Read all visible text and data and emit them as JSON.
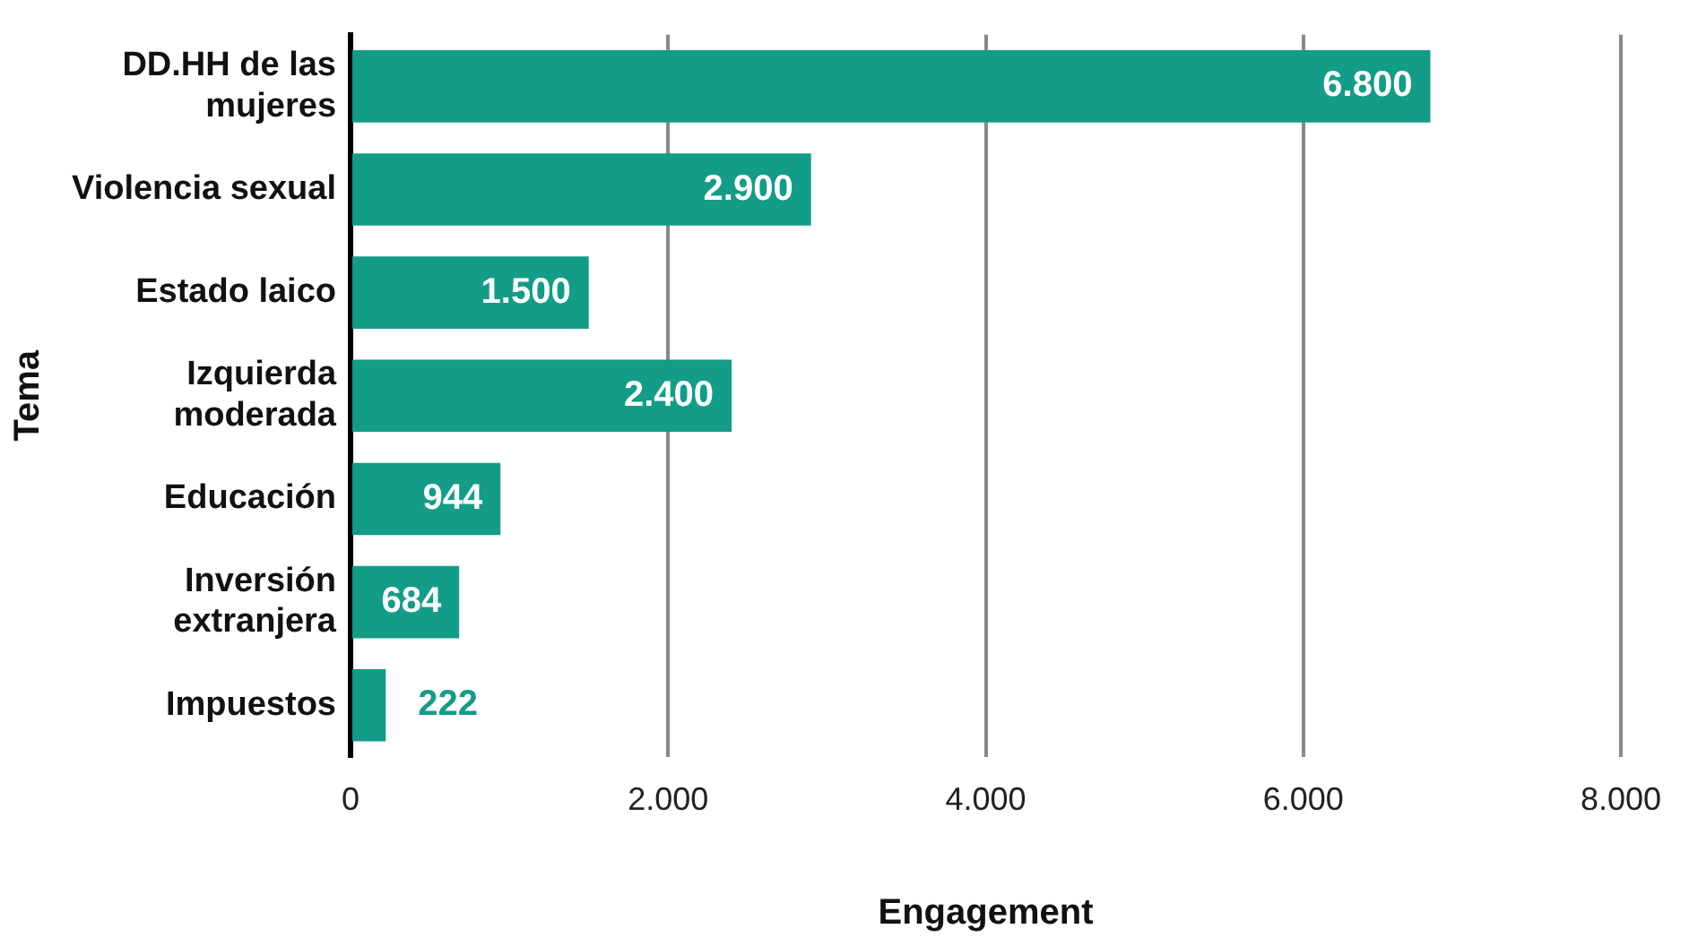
{
  "chart_data": {
    "type": "bar",
    "orientation": "horizontal",
    "xlabel": "Engagement",
    "ylabel": "Tema",
    "categories": [
      "DD.HH de las mujeres",
      "Violencia sexual",
      "Estado laico",
      "Izquierda moderada",
      "Educación",
      "Inversión extranjera",
      "Impuestos"
    ],
    "values": [
      6800,
      2900,
      1500,
      2400,
      944,
      684,
      222
    ],
    "value_labels": [
      "6.800",
      "2.900",
      "1.500",
      "2.400",
      "944",
      "684",
      "222"
    ],
    "color": "#139c87",
    "xlim": [
      0,
      8000
    ],
    "xticks": [
      0,
      {
        "value": 2000,
        "label": "2.000"
      },
      {
        "value": 4000,
        "label": "4.000"
      },
      {
        "value": 6000,
        "label": "6.000"
      },
      {
        "value": 8000,
        "label": "8.000"
      }
    ],
    "grid": "x",
    "legend": false
  }
}
